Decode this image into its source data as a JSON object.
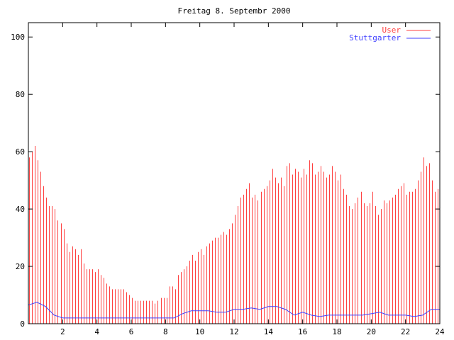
{
  "chart_data": {
    "type": "bar",
    "title": "Freitag 8. Septembr 2000",
    "xlabel": "",
    "ylabel": "",
    "xlim": [
      0,
      24
    ],
    "ylim": [
      0,
      105
    ],
    "xticks": [
      2,
      4,
      6,
      8,
      10,
      12,
      14,
      16,
      18,
      20,
      22,
      24
    ],
    "yticks": [
      0,
      20,
      40,
      60,
      80,
      100
    ],
    "grid": false,
    "legend_position": "top-right",
    "series": [
      {
        "name": "User",
        "style": "impulses",
        "color": "#ff4040",
        "x_step_hours": 0.1667,
        "values": [
          58,
          60,
          62,
          57,
          53,
          48,
          44,
          41,
          41,
          40,
          36,
          35,
          33,
          28,
          25,
          27,
          26,
          24,
          26,
          21,
          19,
          19,
          19,
          18,
          19,
          17,
          16,
          14,
          13,
          12,
          12,
          12,
          12,
          12,
          11,
          10,
          9,
          8,
          8,
          8,
          8,
          8,
          8,
          8,
          7,
          8,
          9,
          9,
          9,
          13,
          13,
          12,
          17,
          18,
          19,
          20,
          22,
          24,
          22,
          25,
          26,
          24,
          27,
          28,
          29,
          30,
          30,
          31,
          32,
          31,
          33,
          35,
          38,
          41,
          44,
          45,
          47,
          49,
          44,
          45,
          43,
          46,
          47,
          48,
          50,
          54,
          51,
          49,
          51,
          48,
          55,
          56,
          52,
          54,
          53,
          51,
          54,
          52,
          57,
          56,
          52,
          53,
          55,
          53,
          51,
          52,
          55,
          53,
          50,
          52,
          47,
          45,
          41,
          40,
          42,
          44,
          46,
          42,
          41,
          42,
          46,
          41,
          38,
          40,
          43,
          42,
          43,
          44,
          45,
          47,
          48,
          49,
          45,
          46,
          46,
          47,
          50,
          53,
          58,
          55,
          56,
          50,
          46,
          47
        ]
      },
      {
        "name": "Stuttgarter",
        "style": "steps",
        "color": "#4040ff",
        "x_step_hours": 0.5,
        "values": [
          6.5,
          7.5,
          6,
          3,
          2,
          2,
          2,
          2,
          2,
          2,
          2,
          2,
          2,
          2,
          2,
          2,
          2,
          2,
          3.5,
          4.5,
          4.5,
          4.5,
          4,
          4,
          5,
          5,
          5.5,
          5,
          6,
          6,
          5,
          3,
          4,
          3,
          2.5,
          3,
          3,
          3,
          3,
          3,
          3.5,
          4,
          3,
          3,
          3,
          2.5,
          3,
          5,
          5
        ]
      }
    ]
  }
}
